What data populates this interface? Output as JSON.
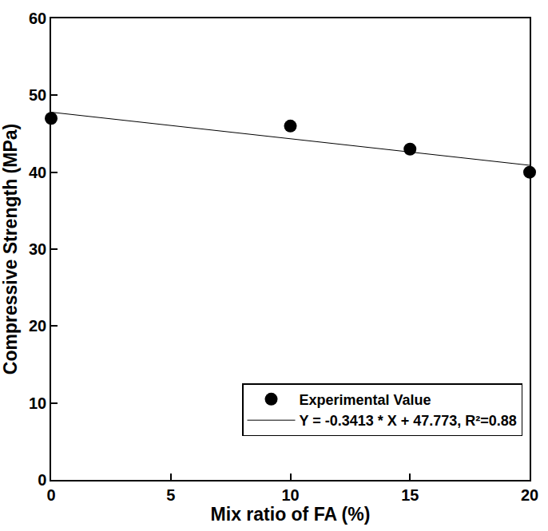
{
  "chart_data": {
    "type": "scatter",
    "x_label": "Mix ratio of FA (%)",
    "y_label": "Compressive Strength (MPa)",
    "series": [
      {
        "name": "Experimental Value",
        "type": "scatter",
        "marker": "circle",
        "color": "#000000",
        "x": [
          0,
          10,
          15,
          20
        ],
        "values": [
          47,
          46,
          43,
          40
        ]
      },
      {
        "name": "Y = -0.3413 * X + 47.773, R²=0.88",
        "type": "line",
        "line_style": "solid",
        "color": "#000000",
        "x": [
          0,
          20
        ],
        "values": [
          47.8,
          40.9
        ]
      }
    ],
    "xlim": [
      0,
      20
    ],
    "xticks": [
      0,
      5,
      10,
      15,
      20
    ],
    "ylim": [
      0,
      60
    ],
    "yticks": [
      0,
      10,
      20,
      30,
      40,
      50,
      60
    ],
    "grid": false,
    "legend": "lower right"
  }
}
